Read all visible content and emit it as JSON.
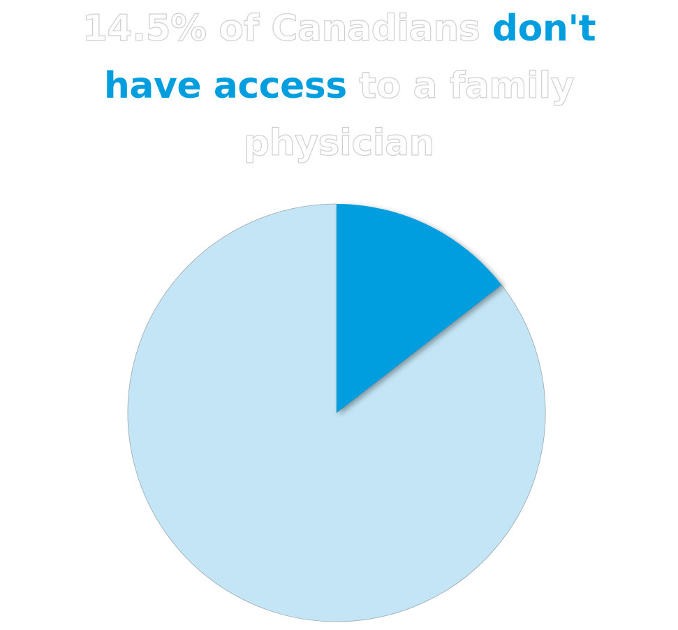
{
  "headline": {
    "part1": "14.5% of Canadians ",
    "part2": "don't",
    "part3": "have access",
    "part4": " to a family",
    "part5": "physician"
  },
  "colors": {
    "accent": "#009ddf",
    "light": "#c3e5f5",
    "outline": "#cfcfcf"
  },
  "chart_data": {
    "type": "pie",
    "title": "14.5% of Canadians don't have access to a family physician",
    "slices": [
      {
        "label": "",
        "value": 14.5,
        "color": "#009ddf"
      },
      {
        "label": "",
        "value": 85.5,
        "color": "#c3e5f5"
      }
    ]
  }
}
